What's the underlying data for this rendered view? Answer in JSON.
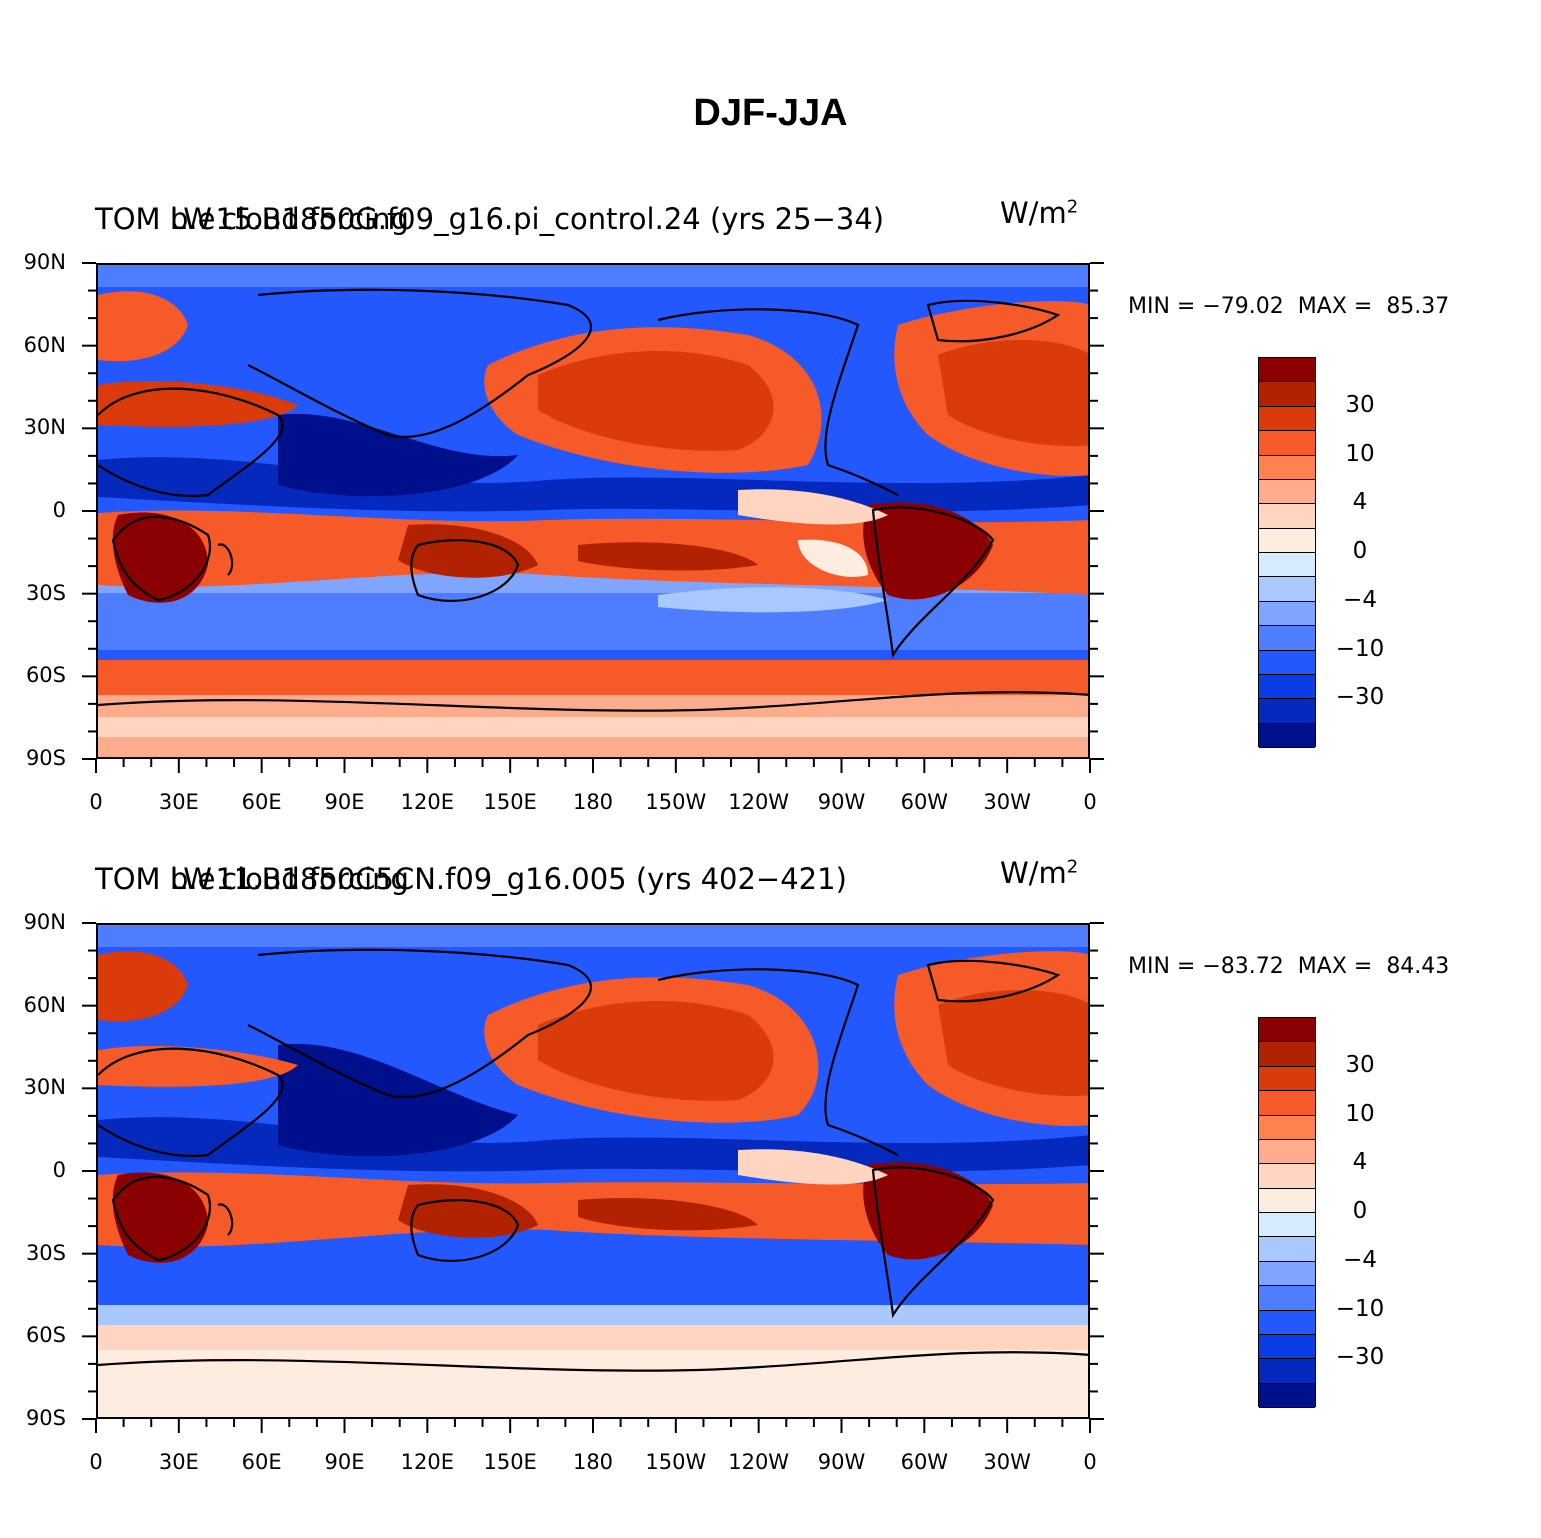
{
  "figure_title": "DJF-JJA",
  "colorbar": {
    "colors": [
      "#8b0000",
      "#b22200",
      "#db3a0a",
      "#f55a28",
      "#fd8250",
      "#fdad8e",
      "#fed5c0",
      "#fdece0",
      "#d6ebff",
      "#a9c8fe",
      "#7fa5fe",
      "#4f7dff",
      "#2458ff",
      "#0b3de6",
      "#0629bd",
      "#000f8c"
    ],
    "labels": [
      "30",
      "10",
      "4",
      "0",
      "−4",
      "−10",
      "−30"
    ]
  },
  "panels": [
    {
      "title_left": "TOM LW cloud forcing",
      "title_center": "b.e15.B1850G.f09_g16.pi_control.24 (yrs 25−34)",
      "units": "W/m",
      "units_exp": "2",
      "min_label": "MIN = ",
      "min_value": "−79.02",
      "max_label": "MAX = ",
      "max_value": "85.37"
    },
    {
      "title_left": "TOM LW cloud forcing",
      "title_center": "b.e11.B1850C5CN.f09_g16.005 (yrs 402−421)",
      "units": "W/m",
      "units_exp": "2",
      "min_label": "MIN = ",
      "min_value": "−83.72",
      "max_label": "MAX = ",
      "max_value": "84.43"
    }
  ],
  "axes": {
    "lat_labels": [
      "90N",
      "60N",
      "30N",
      "0",
      "30S",
      "60S",
      "90S"
    ],
    "lon_labels": [
      "0",
      "30E",
      "60E",
      "90E",
      "120E",
      "150E",
      "180",
      "150W",
      "120W",
      "90W",
      "60W",
      "30W",
      "0"
    ]
  }
}
